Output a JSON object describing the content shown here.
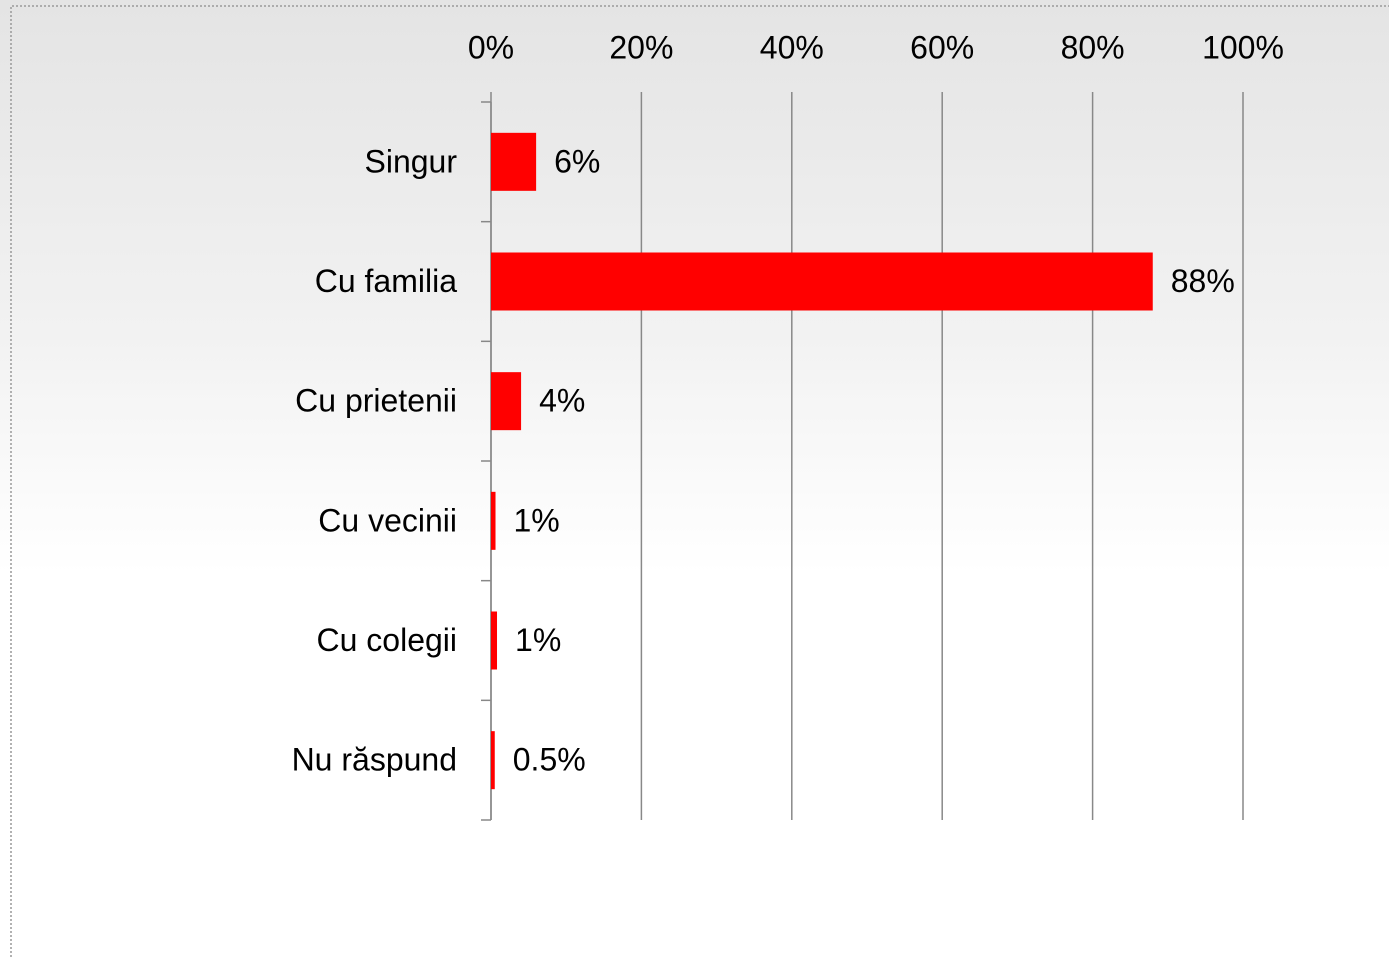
{
  "chart_data": {
    "type": "bar",
    "orientation": "horizontal",
    "categories": [
      "Singur",
      "Cu familia",
      "Cu prietenii",
      "Cu vecinii",
      "Cu colegii",
      "Nu răspund"
    ],
    "values": [
      6,
      88,
      4,
      0.6,
      0.8,
      0.5
    ],
    "value_labels": [
      "6%",
      "88%",
      "4%",
      "1%",
      "1%",
      "0.5%"
    ],
    "color": "#ff0000",
    "xlim": [
      0,
      100
    ],
    "xticks": [
      {
        "value": 0,
        "label": "0%"
      },
      {
        "value": 20,
        "label": "20%"
      },
      {
        "value": 40,
        "label": "40%"
      },
      {
        "value": 60,
        "label": "60%"
      },
      {
        "value": 80,
        "label": "80%"
      },
      {
        "value": 100,
        "label": "100%"
      }
    ],
    "grid": true
  }
}
